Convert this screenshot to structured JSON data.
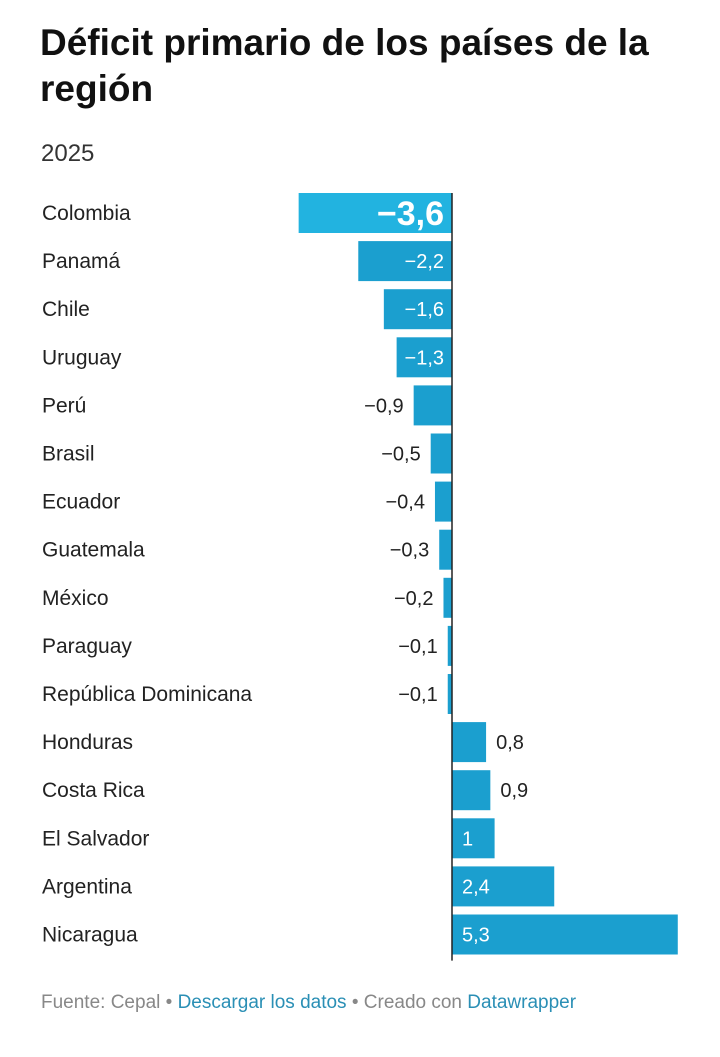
{
  "title": "Déficit primario de los países de la región",
  "subtitle": "2025",
  "footer": {
    "source": "Fuente: Cepal",
    "separator": "•",
    "download": "Descargar los datos",
    "created_with": "Creado con",
    "tool": "Datawrapper"
  },
  "colors": {
    "bar": "#1b9fcf",
    "highlight": "#22b3e0",
    "axis": "#222222",
    "label_inside": "#ffffff",
    "label_outside": "#222222",
    "link": "#2a8fb5"
  },
  "chart_data": {
    "type": "bar",
    "orientation": "horizontal",
    "title": "Déficit primario de los países de la región",
    "subtitle": "2025",
    "categories": [
      "Colombia",
      "Panamá",
      "Chile",
      "Uruguay",
      "Perú",
      "Brasil",
      "Ecuador",
      "Guatemala",
      "México",
      "Paraguay",
      "República Dominicana",
      "Honduras",
      "Costa Rica",
      "El Salvador",
      "Argentina",
      "Nicaragua"
    ],
    "values": [
      -3.6,
      -2.2,
      -1.6,
      -1.3,
      -0.9,
      -0.5,
      -0.4,
      -0.3,
      -0.2,
      -0.1,
      -0.1,
      0.8,
      0.9,
      1,
      2.4,
      5.3
    ],
    "labels": [
      "−3,6",
      "−2,2",
      "−1,6",
      "−1,3",
      "−0,9",
      "−0,5",
      "−0,4",
      "−0,3",
      "−0,2",
      "−0,1",
      "−0,1",
      "0,8",
      "0,9",
      "1",
      "2,4",
      "5,3"
    ],
    "highlight": "Colombia",
    "xlim": [
      -3.6,
      5.3
    ]
  }
}
